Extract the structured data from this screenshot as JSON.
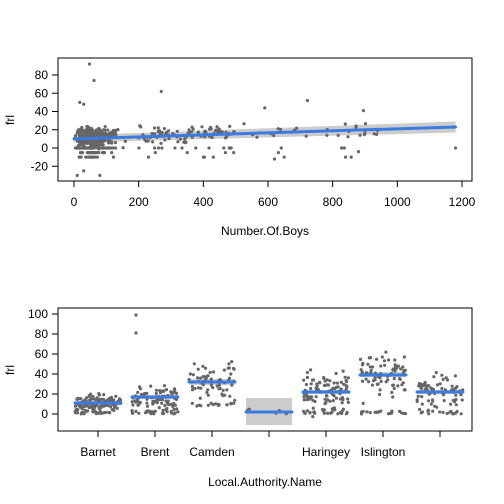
{
  "chart_data": [
    {
      "type": "scatter",
      "xlabel": "Number.Of.Boys",
      "ylabel": "frl",
      "xticks": [
        0,
        200,
        400,
        600,
        800,
        1000,
        1200
      ],
      "yticks": [
        -20,
        0,
        20,
        40,
        60,
        80
      ],
      "xlim": [
        -20,
        1200
      ],
      "ylim": [
        -30,
        95
      ],
      "fit": {
        "x": [
          0,
          1180
        ],
        "y": [
          10,
          23
        ],
        "ribbon_lower": [
          6,
          17
        ],
        "ribbon_upper": [
          14,
          29
        ]
      },
      "line_color": "#3a7be0",
      "ribbon_color": "#cccccc",
      "point_color": "#666666",
      "highlighted_points": [
        {
          "x": 48,
          "y": 92
        },
        {
          "x": 62,
          "y": 74
        },
        {
          "x": 18,
          "y": 50
        },
        {
          "x": 30,
          "y": 48
        },
        {
          "x": 270,
          "y": 62
        },
        {
          "x": 722,
          "y": 52
        },
        {
          "x": 590,
          "y": 44
        },
        {
          "x": 895,
          "y": 41
        },
        {
          "x": 1180,
          "y": 0
        },
        {
          "x": 880,
          "y": -4
        },
        {
          "x": 840,
          "y": -10
        },
        {
          "x": 650,
          "y": -10
        },
        {
          "x": 620,
          "y": -12
        },
        {
          "x": 10,
          "y": -30
        },
        {
          "x": 80,
          "y": -30
        },
        {
          "x": 30,
          "y": -25
        }
      ],
      "cloud": {
        "n": 520,
        "seed": 7
      }
    },
    {
      "type": "scatter",
      "xlabel": "Local.Authority.Name",
      "ylabel": "frl",
      "categories": [
        "Barnet",
        "Brent",
        "Camden",
        "",
        "Haringey",
        "Islington",
        ""
      ],
      "yticks": [
        0,
        20,
        40,
        60,
        80,
        100
      ],
      "ylim": [
        -12,
        102
      ],
      "groups": [
        {
          "mean": 11,
          "lower": 9,
          "upper": 13,
          "n": 140,
          "lo": 0,
          "hi": 36
        },
        {
          "mean": 17,
          "lower": 15,
          "upper": 19,
          "n": 110,
          "lo": 0,
          "hi": 50,
          "extra": [
            99,
            81
          ]
        },
        {
          "mean": 32,
          "lower": 29,
          "upper": 35,
          "n": 80,
          "lo": 8,
          "hi": 70
        },
        {
          "mean": 2,
          "lower": -11,
          "upper": 16,
          "n": 5,
          "lo": -1,
          "hi": 18
        },
        {
          "mean": 22,
          "lower": 20,
          "upper": 24,
          "n": 115,
          "lo": 0,
          "hi": 72
        },
        {
          "mean": 39,
          "lower": 37,
          "upper": 42,
          "n": 95,
          "lo": 0,
          "hi": 76
        },
        {
          "mean": 22,
          "lower": 20,
          "upper": 24,
          "n": 85,
          "lo": 0,
          "hi": 63
        }
      ],
      "line_color": "#3a7be0",
      "ribbon_color": "#cccccc",
      "point_color": "#666666"
    }
  ]
}
